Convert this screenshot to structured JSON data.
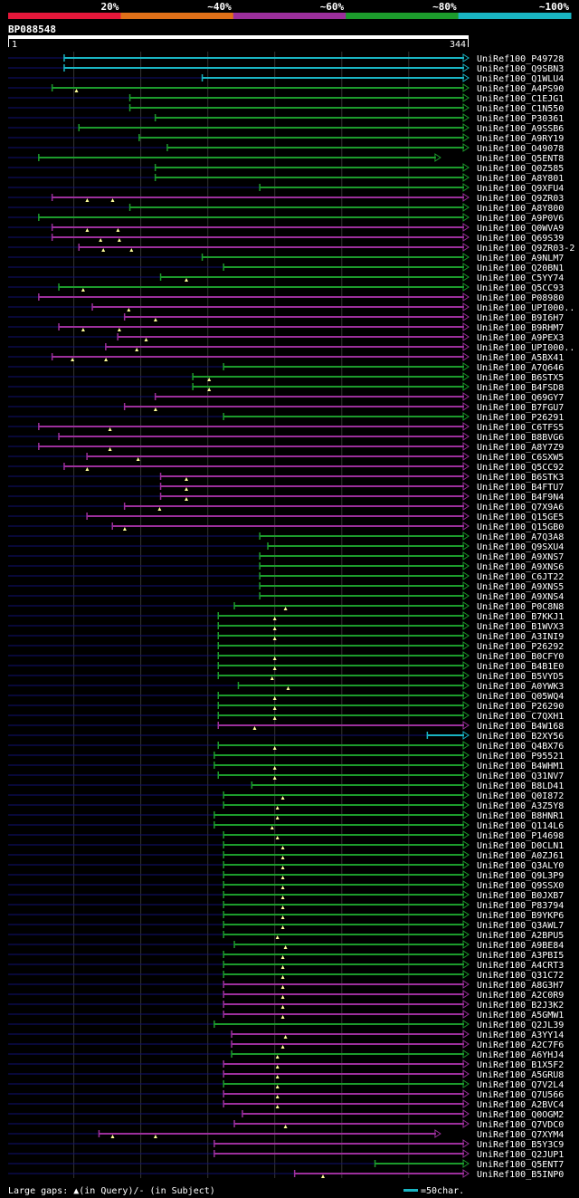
{
  "query": {
    "name": "BP088548",
    "start_label": "1",
    "end_label": "344",
    "length": 344
  },
  "identity_scale": {
    "labels": [
      "20%",
      "~40%",
      "~60%",
      "~80%",
      "~100%"
    ],
    "colors": [
      "#e4173a",
      "#e07018",
      "#9c2f9c",
      "#1c9b2c",
      "#19b4c2"
    ]
  },
  "colors": {
    "cyan": "#19b4c2",
    "green": "#1c9b2c",
    "purple": "#9c2f9c",
    "unaligned": "#101070",
    "gap": "#ffff99",
    "grid": "#333333"
  },
  "footer": {
    "gaps_label": "Large gaps: ▲(in Query)/- (in Subject)",
    "scale_label": "=50char."
  },
  "hits": [
    {
      "label": "UniRef100_P49728",
      "start": 43,
      "end": 344,
      "color": "cyan",
      "gaps": []
    },
    {
      "label": "UniRef100_Q9SBN3",
      "start": 43,
      "end": 344,
      "color": "cyan",
      "gaps": []
    },
    {
      "label": "UniRef100_Q1WLU4",
      "start": 146,
      "end": 344,
      "color": "cyan",
      "gaps": []
    },
    {
      "label": "UniRef100_A4PS90",
      "start": 34,
      "end": 344,
      "color": "green",
      "gaps": [
        52
      ]
    },
    {
      "label": "UniRef100_C1EJG1",
      "start": 92,
      "end": 344,
      "color": "green",
      "gaps": []
    },
    {
      "label": "UniRef100_C1N550",
      "start": 92,
      "end": 344,
      "color": "green",
      "gaps": []
    },
    {
      "label": "UniRef100_P30361",
      "start": 111,
      "end": 344,
      "color": "green",
      "gaps": []
    },
    {
      "label": "UniRef100_A9SSB6",
      "start": 54,
      "end": 344,
      "color": "green",
      "gaps": []
    },
    {
      "label": "UniRef100_A9RY19",
      "start": 99,
      "end": 344,
      "color": "green",
      "gaps": []
    },
    {
      "label": "UniRef100_O49078",
      "start": 120,
      "end": 344,
      "color": "green",
      "gaps": []
    },
    {
      "label": "UniRef100_Q5ENT8",
      "start": 24,
      "end": 323,
      "color": "green",
      "gaps": []
    },
    {
      "label": "UniRef100_Q0Z585",
      "start": 111,
      "end": 344,
      "color": "green",
      "gaps": []
    },
    {
      "label": "UniRef100_A8Y801",
      "start": 111,
      "end": 344,
      "color": "green",
      "gaps": []
    },
    {
      "label": "UniRef100_Q9XFU4",
      "start": 189,
      "end": 344,
      "color": "green",
      "gaps": []
    },
    {
      "label": "UniRef100_Q9ZR03",
      "start": 34,
      "end": 344,
      "color": "purple",
      "gaps": [
        60,
        79
      ]
    },
    {
      "label": "UniRef100_A8Y800",
      "start": 92,
      "end": 344,
      "color": "green",
      "gaps": []
    },
    {
      "label": "UniRef100_A9P0V6",
      "start": 24,
      "end": 344,
      "color": "green",
      "gaps": []
    },
    {
      "label": "UniRef100_Q0WVA9",
      "start": 34,
      "end": 344,
      "color": "purple",
      "gaps": [
        60,
        83
      ]
    },
    {
      "label": "UniRef100_Q69S39",
      "start": 34,
      "end": 344,
      "color": "purple",
      "gaps": [
        70,
        84
      ]
    },
    {
      "label": "UniRef100_Q9ZR03-2",
      "start": 54,
      "end": 344,
      "color": "purple",
      "gaps": [
        72,
        93
      ]
    },
    {
      "label": "UniRef100_A9NLM7",
      "start": 146,
      "end": 344,
      "color": "green",
      "gaps": []
    },
    {
      "label": "UniRef100_Q20BN1",
      "start": 162,
      "end": 344,
      "color": "green",
      "gaps": []
    },
    {
      "label": "UniRef100_C5YY74",
      "start": 115,
      "end": 344,
      "color": "green",
      "gaps": [
        134
      ]
    },
    {
      "label": "UniRef100_Q5CC93",
      "start": 39,
      "end": 344,
      "color": "green",
      "gaps": [
        57
      ]
    },
    {
      "label": "UniRef100_P08980",
      "start": 24,
      "end": 344,
      "color": "purple",
      "gaps": []
    },
    {
      "label": "UniRef100_UPI000..",
      "start": 64,
      "end": 344,
      "color": "purple",
      "gaps": [
        91
      ]
    },
    {
      "label": "UniRef100_B9I6H7",
      "start": 88,
      "end": 344,
      "color": "purple",
      "gaps": [
        111
      ]
    },
    {
      "label": "UniRef100_B9RHM7",
      "start": 39,
      "end": 344,
      "color": "purple",
      "gaps": [
        57,
        84
      ]
    },
    {
      "label": "UniRef100_A9PEX3",
      "start": 83,
      "end": 344,
      "color": "purple",
      "gaps": [
        104
      ]
    },
    {
      "label": "UniRef100_UPI000..",
      "start": 74,
      "end": 344,
      "color": "purple",
      "gaps": [
        97
      ]
    },
    {
      "label": "UniRef100_A5BX41",
      "start": 34,
      "end": 344,
      "color": "purple",
      "gaps": [
        49,
        74
      ]
    },
    {
      "label": "UniRef100_A7Q646",
      "start": 162,
      "end": 344,
      "color": "green",
      "gaps": []
    },
    {
      "label": "UniRef100_B6STX5",
      "start": 139,
      "end": 344,
      "color": "green",
      "gaps": [
        151
      ]
    },
    {
      "label": "UniRef100_B4FSD8",
      "start": 139,
      "end": 344,
      "color": "green",
      "gaps": [
        151
      ]
    },
    {
      "label": "UniRef100_Q69GY7",
      "start": 111,
      "end": 344,
      "color": "purple",
      "gaps": []
    },
    {
      "label": "UniRef100_B7FGU7",
      "start": 88,
      "end": 344,
      "color": "purple",
      "gaps": [
        111
      ]
    },
    {
      "label": "UniRef100_P26291",
      "start": 162,
      "end": 344,
      "color": "green",
      "gaps": []
    },
    {
      "label": "UniRef100_C6TFS5",
      "start": 24,
      "end": 344,
      "color": "purple",
      "gaps": [
        77
      ]
    },
    {
      "label": "UniRef100_B8BVG6",
      "start": 39,
      "end": 344,
      "color": "purple",
      "gaps": []
    },
    {
      "label": "UniRef100_A8Y7Z9",
      "start": 24,
      "end": 344,
      "color": "purple",
      "gaps": [
        77
      ]
    },
    {
      "label": "UniRef100_C6SXW5",
      "start": 60,
      "end": 344,
      "color": "purple",
      "gaps": [
        98
      ]
    },
    {
      "label": "UniRef100_Q5CC92",
      "start": 43,
      "end": 344,
      "color": "purple",
      "gaps": [
        60
      ]
    },
    {
      "label": "UniRef100_B6STK3",
      "start": 115,
      "end": 344,
      "color": "purple",
      "gaps": [
        134
      ]
    },
    {
      "label": "UniRef100_B4FTU7",
      "start": 115,
      "end": 344,
      "color": "purple",
      "gaps": [
        134
      ]
    },
    {
      "label": "UniRef100_B4F9N4",
      "start": 115,
      "end": 344,
      "color": "purple",
      "gaps": [
        134
      ]
    },
    {
      "label": "UniRef100_Q7X9A6",
      "start": 88,
      "end": 344,
      "color": "purple",
      "gaps": [
        114
      ]
    },
    {
      "label": "UniRef100_Q15GE5",
      "start": 60,
      "end": 344,
      "color": "purple",
      "gaps": []
    },
    {
      "label": "UniRef100_Q15GB0",
      "start": 79,
      "end": 344,
      "color": "purple",
      "gaps": [
        88
      ]
    },
    {
      "label": "UniRef100_A7Q3A8",
      "start": 189,
      "end": 344,
      "color": "green",
      "gaps": []
    },
    {
      "label": "UniRef100_Q9SXU4",
      "start": 195,
      "end": 344,
      "color": "green",
      "gaps": []
    },
    {
      "label": "UniRef100_A9XNS7",
      "start": 189,
      "end": 344,
      "color": "green",
      "gaps": []
    },
    {
      "label": "UniRef100_A9XNS6",
      "start": 189,
      "end": 344,
      "color": "green",
      "gaps": []
    },
    {
      "label": "UniRef100_C6JT22",
      "start": 189,
      "end": 344,
      "color": "green",
      "gaps": []
    },
    {
      "label": "UniRef100_A9XNS5",
      "start": 189,
      "end": 344,
      "color": "green",
      "gaps": []
    },
    {
      "label": "UniRef100_A9XNS4",
      "start": 189,
      "end": 344,
      "color": "green",
      "gaps": []
    },
    {
      "label": "UniRef100_P0C8N8",
      "start": 170,
      "end": 344,
      "color": "green",
      "gaps": [
        208
      ]
    },
    {
      "label": "UniRef100_B7KKJ1",
      "start": 158,
      "end": 344,
      "color": "green",
      "gaps": [
        200
      ]
    },
    {
      "label": "UniRef100_B1WVX3",
      "start": 158,
      "end": 344,
      "color": "green",
      "gaps": [
        200
      ]
    },
    {
      "label": "UniRef100_A3INI9",
      "start": 158,
      "end": 344,
      "color": "green",
      "gaps": [
        200
      ]
    },
    {
      "label": "UniRef100_P26292",
      "start": 158,
      "end": 344,
      "color": "green",
      "gaps": []
    },
    {
      "label": "UniRef100_B0CFY0",
      "start": 158,
      "end": 344,
      "color": "green",
      "gaps": [
        200
      ]
    },
    {
      "label": "UniRef100_B4B1E0",
      "start": 158,
      "end": 344,
      "color": "green",
      "gaps": [
        200
      ]
    },
    {
      "label": "UniRef100_B5VYD5",
      "start": 158,
      "end": 344,
      "color": "green",
      "gaps": [
        198
      ]
    },
    {
      "label": "UniRef100_A0YWK3",
      "start": 173,
      "end": 344,
      "color": "green",
      "gaps": [
        210
      ]
    },
    {
      "label": "UniRef100_Q05WQ4",
      "start": 158,
      "end": 344,
      "color": "green",
      "gaps": [
        200
      ]
    },
    {
      "label": "UniRef100_P26290",
      "start": 158,
      "end": 344,
      "color": "green",
      "gaps": [
        200
      ]
    },
    {
      "label": "UniRef100_C7QXH1",
      "start": 158,
      "end": 344,
      "color": "green",
      "gaps": [
        200
      ]
    },
    {
      "label": "UniRef100_B4W168",
      "start": 158,
      "end": 344,
      "color": "purple",
      "gaps": [
        185
      ]
    },
    {
      "label": "UniRef100_B2XY56",
      "start": 314,
      "end": 344,
      "color": "cyan",
      "gaps": []
    },
    {
      "label": "UniRef100_Q4BX76",
      "start": 158,
      "end": 344,
      "color": "green",
      "gaps": [
        200
      ]
    },
    {
      "label": "UniRef100_P95521",
      "start": 155,
      "end": 344,
      "color": "green",
      "gaps": []
    },
    {
      "label": "UniRef100_B4WHM1",
      "start": 155,
      "end": 344,
      "color": "green",
      "gaps": [
        200
      ]
    },
    {
      "label": "UniRef100_Q31NV7",
      "start": 158,
      "end": 344,
      "color": "green",
      "gaps": [
        200
      ]
    },
    {
      "label": "UniRef100_B8LD41",
      "start": 183,
      "end": 344,
      "color": "green",
      "gaps": []
    },
    {
      "label": "UniRef100_Q0I872",
      "start": 162,
      "end": 344,
      "color": "green",
      "gaps": [
        206
      ]
    },
    {
      "label": "UniRef100_A3Z5Y8",
      "start": 162,
      "end": 344,
      "color": "green",
      "gaps": [
        202
      ]
    },
    {
      "label": "UniRef100_B8HNR1",
      "start": 155,
      "end": 344,
      "color": "green",
      "gaps": [
        202
      ]
    },
    {
      "label": "UniRef100_Q114L6",
      "start": 155,
      "end": 344,
      "color": "green",
      "gaps": [
        198
      ]
    },
    {
      "label": "UniRef100_P14698",
      "start": 162,
      "end": 344,
      "color": "green",
      "gaps": [
        202
      ]
    },
    {
      "label": "UniRef100_D0CLN1",
      "start": 162,
      "end": 344,
      "color": "green",
      "gaps": [
        206
      ]
    },
    {
      "label": "UniRef100_A0ZJ61",
      "start": 162,
      "end": 344,
      "color": "green",
      "gaps": [
        206
      ]
    },
    {
      "label": "UniRef100_Q3ALY0",
      "start": 162,
      "end": 344,
      "color": "green",
      "gaps": [
        206
      ]
    },
    {
      "label": "UniRef100_Q9L3P9",
      "start": 162,
      "end": 344,
      "color": "green",
      "gaps": [
        206
      ]
    },
    {
      "label": "UniRef100_Q9SSX0",
      "start": 162,
      "end": 344,
      "color": "green",
      "gaps": [
        206
      ]
    },
    {
      "label": "UniRef100_B0JXB7",
      "start": 162,
      "end": 344,
      "color": "green",
      "gaps": [
        206
      ]
    },
    {
      "label": "UniRef100_P83794",
      "start": 162,
      "end": 344,
      "color": "green",
      "gaps": [
        206
      ]
    },
    {
      "label": "UniRef100_B9YKP6",
      "start": 162,
      "end": 344,
      "color": "green",
      "gaps": [
        206
      ]
    },
    {
      "label": "UniRef100_Q3AWL7",
      "start": 162,
      "end": 344,
      "color": "green",
      "gaps": [
        206
      ]
    },
    {
      "label": "UniRef100_A2BPU5",
      "start": 162,
      "end": 344,
      "color": "green",
      "gaps": [
        202
      ]
    },
    {
      "label": "UniRef100_A9BE84",
      "start": 170,
      "end": 344,
      "color": "green",
      "gaps": [
        208
      ]
    },
    {
      "label": "UniRef100_A3PBI5",
      "start": 162,
      "end": 344,
      "color": "green",
      "gaps": [
        206
      ]
    },
    {
      "label": "UniRef100_A4CRT3",
      "start": 162,
      "end": 344,
      "color": "green",
      "gaps": [
        206
      ]
    },
    {
      "label": "UniRef100_Q31C72",
      "start": 162,
      "end": 344,
      "color": "green",
      "gaps": [
        206
      ]
    },
    {
      "label": "UniRef100_A8G3H7",
      "start": 162,
      "end": 344,
      "color": "purple",
      "gaps": [
        206
      ]
    },
    {
      "label": "UniRef100_A2C0R9",
      "start": 162,
      "end": 344,
      "color": "purple",
      "gaps": [
        206
      ]
    },
    {
      "label": "UniRef100_B2J3K2",
      "start": 162,
      "end": 344,
      "color": "purple",
      "gaps": [
        206
      ]
    },
    {
      "label": "UniRef100_A5GMW1",
      "start": 162,
      "end": 344,
      "color": "purple",
      "gaps": [
        206
      ]
    },
    {
      "label": "UniRef100_Q2JL39",
      "start": 155,
      "end": 344,
      "color": "green",
      "gaps": []
    },
    {
      "label": "UniRef100_A3YY14",
      "start": 168,
      "end": 344,
      "color": "purple",
      "gaps": [
        208
      ]
    },
    {
      "label": "UniRef100_A2C7F6",
      "start": 168,
      "end": 344,
      "color": "purple",
      "gaps": [
        206
      ]
    },
    {
      "label": "UniRef100_A6YHJ4",
      "start": 168,
      "end": 344,
      "color": "green",
      "gaps": [
        202
      ]
    },
    {
      "label": "UniRef100_B1X5F2",
      "start": 162,
      "end": 344,
      "color": "purple",
      "gaps": [
        202
      ]
    },
    {
      "label": "UniRef100_A5GRU8",
      "start": 162,
      "end": 344,
      "color": "purple",
      "gaps": [
        202
      ]
    },
    {
      "label": "UniRef100_Q7V2L4",
      "start": 162,
      "end": 344,
      "color": "green",
      "gaps": [
        202
      ]
    },
    {
      "label": "UniRef100_Q7U566",
      "start": 162,
      "end": 344,
      "color": "purple",
      "gaps": [
        202
      ]
    },
    {
      "label": "UniRef100_A2BVC4",
      "start": 162,
      "end": 344,
      "color": "purple",
      "gaps": [
        202
      ]
    },
    {
      "label": "UniRef100_Q0OGM2",
      "start": 176,
      "end": 344,
      "color": "purple",
      "gaps": []
    },
    {
      "label": "UniRef100_Q7VDC0",
      "start": 170,
      "end": 344,
      "color": "purple",
      "gaps": [
        208
      ]
    },
    {
      "label": "UniRef100_Q7XYM4",
      "start": 69,
      "end": 323,
      "color": "purple",
      "gaps": [
        79,
        111
      ]
    },
    {
      "label": "UniRef100_B5Y3C9",
      "start": 155,
      "end": 344,
      "color": "purple",
      "gaps": []
    },
    {
      "label": "UniRef100_Q2JUP1",
      "start": 155,
      "end": 344,
      "color": "purple",
      "gaps": []
    },
    {
      "label": "UniRef100_Q5ENT7",
      "start": 275,
      "end": 344,
      "color": "green",
      "gaps": []
    },
    {
      "label": "UniRef100_B5INP0",
      "start": 215,
      "end": 344,
      "color": "purple",
      "gaps": [
        236
      ]
    }
  ]
}
